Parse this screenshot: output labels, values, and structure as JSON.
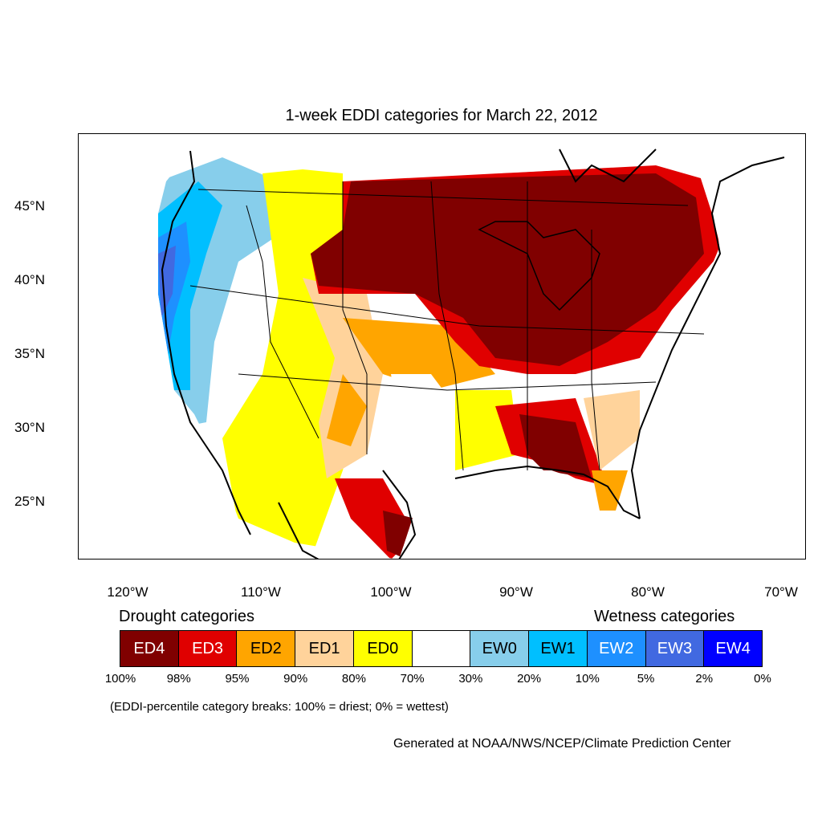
{
  "title": "1-week EDDI categories for March 22, 2012",
  "map": {
    "lat_labels": [
      "45°N",
      "40°N",
      "35°N",
      "30°N",
      "25°N"
    ],
    "lon_labels": [
      "120°W",
      "110°W",
      "100°W",
      "90°W",
      "80°W",
      "70°W"
    ],
    "colors": {
      "ED4": "#800000",
      "ED3": "#e00000",
      "ED2": "#ffa500",
      "ED1": "#ffd39b",
      "ED0": "#ffff00",
      "neutral": "#ffffff",
      "EW0": "#87ceeb",
      "EW1": "#00bfff",
      "EW2": "#1e90ff",
      "EW3": "#4169e1",
      "EW4": "#0000ff"
    }
  },
  "legend": {
    "drought_heading": "Drought categories",
    "wetness_heading": "Wetness categories",
    "categories": [
      {
        "label": "ED4",
        "color": "#800000"
      },
      {
        "label": "ED3",
        "color": "#e00000"
      },
      {
        "label": "ED2",
        "color": "#ffa500"
      },
      {
        "label": "ED1",
        "color": "#ffd39b"
      },
      {
        "label": "ED0",
        "color": "#ffff00"
      },
      {
        "label": "",
        "color": "#ffffff"
      },
      {
        "label": "EW0",
        "color": "#87ceeb"
      },
      {
        "label": "EW1",
        "color": "#00bfff"
      },
      {
        "label": "EW2",
        "color": "#1e90ff"
      },
      {
        "label": "EW3",
        "color": "#4169e1"
      },
      {
        "label": "EW4",
        "color": "#0000ff"
      }
    ],
    "percent_breaks": [
      "100%",
      "98%",
      "95%",
      "90%",
      "80%",
      "70%",
      "30%",
      "20%",
      "10%",
      "5%",
      "2%",
      "0%"
    ],
    "note": "(EDDI-percentile category breaks: 100% = driest; 0% = wettest)"
  },
  "credit": "Generated at NOAA/NWS/NCEP/Climate Prediction Center"
}
